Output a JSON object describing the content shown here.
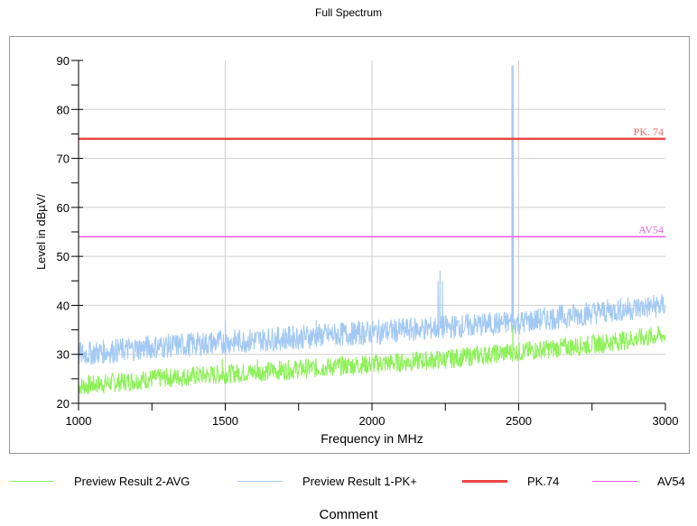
{
  "chart_data": {
    "type": "line",
    "title": "Full Spectrum",
    "xlabel": "Frequency in MHz",
    "ylabel": "Level in dBµV/",
    "xlim": [
      1000,
      3000
    ],
    "ylim": [
      20,
      90
    ],
    "x_ticks": [
      1000,
      1500,
      2000,
      2500,
      3000
    ],
    "y_ticks": [
      20,
      30,
      40,
      50,
      60,
      70,
      80,
      90
    ],
    "grid": true,
    "legend_position": "bottom",
    "series": [
      {
        "name": "Preview Result 2-AVG",
        "color": "#8ef05a",
        "style": "noisy-trace",
        "x": [
          1000,
          1250,
          1500,
          1750,
          2000,
          2250,
          2480,
          2500,
          2750,
          3000
        ],
        "baseline": [
          23.5,
          25.0,
          26.0,
          27.0,
          28.0,
          29.0,
          30.5,
          30.5,
          32.0,
          34.0
        ],
        "noise_spread": 2.0,
        "spikes": [
          {
            "x": 1490,
            "y": 29
          },
          {
            "x": 1610,
            "y": 29
          },
          {
            "x": 2480,
            "y": 36
          }
        ]
      },
      {
        "name": "Preview Result 1-PK+",
        "color": "#a3c9f3",
        "style": "noisy-trace",
        "x": [
          1000,
          1250,
          1500,
          1750,
          2000,
          2250,
          2480,
          2500,
          2750,
          3000
        ],
        "baseline": [
          30.0,
          31.5,
          32.5,
          33.5,
          34.5,
          35.5,
          36.5,
          36.5,
          38.5,
          40.0
        ],
        "noise_spread": 2.5,
        "spikes": [
          {
            "x": 1500,
            "y": 37
          },
          {
            "x": 1810,
            "y": 37
          },
          {
            "x": 2225,
            "y": 45
          },
          {
            "x": 2232,
            "y": 47
          },
          {
            "x": 2240,
            "y": 45
          },
          {
            "x": 2477,
            "y": 89
          },
          {
            "x": 2481,
            "y": 89
          }
        ]
      },
      {
        "name": "PK.74",
        "color": "#ee4545",
        "style": "limit",
        "x": [
          1000,
          3000
        ],
        "values": [
          74,
          74
        ]
      },
      {
        "name": "AV54",
        "color": "#ee55ee",
        "style": "limit",
        "x": [
          1000,
          3000
        ],
        "values": [
          54,
          54
        ]
      }
    ],
    "annotations": [
      {
        "text": "PK. 74",
        "x": 3000,
        "y": 74,
        "color": "#ee6666"
      },
      {
        "text": "AV54",
        "x": 3000,
        "y": 54,
        "color": "#e066e0"
      }
    ]
  },
  "legend": [
    {
      "label": "Preview Result 2-AVG",
      "color": "#8ef05a"
    },
    {
      "label": "Preview Result 1-PK+",
      "color": "#a3c9f3"
    },
    {
      "label": "PK.74",
      "color": "#ee4545"
    },
    {
      "label": "AV54",
      "color": "#ee55ee"
    }
  ],
  "comment": "Comment"
}
